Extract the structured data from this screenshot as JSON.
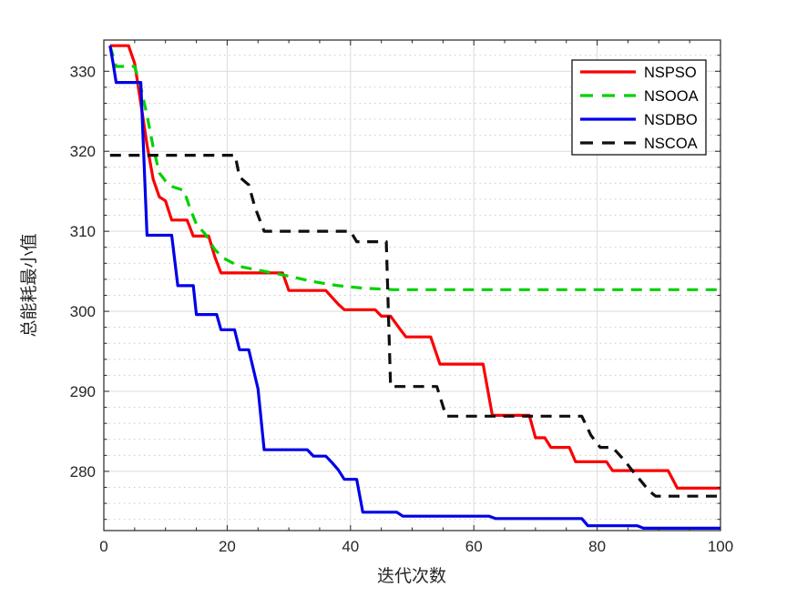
{
  "figure": {
    "background": "#ffffff"
  },
  "chart_data": {
    "type": "line",
    "title": "",
    "xlabel": "迭代次数",
    "ylabel": "总能耗最小值",
    "xlim": [
      0,
      100
    ],
    "ylim": [
      272.6,
      333.9
    ],
    "xticks": [
      0,
      20,
      40,
      60,
      80,
      100
    ],
    "yticks": [
      280,
      290,
      300,
      310,
      320,
      330
    ],
    "x_minor_step": 5,
    "y_minor_step": 2,
    "grid": {
      "major": true,
      "minor_horizontal_dotted": true
    },
    "axis_color": "#262626",
    "grid_major_color": "#dcdcdc",
    "grid_minor_color": "#c9c9c9",
    "legend": {
      "position": "northeast",
      "border_color": "#000000",
      "background": "#ffffff"
    },
    "series": [
      {
        "name": "NSPSO",
        "color": "#fa0000",
        "style": "solid",
        "points": [
          [
            1,
            333.2
          ],
          [
            4,
            333.2
          ],
          [
            5,
            331.0
          ],
          [
            6,
            326.0
          ],
          [
            7,
            320.8
          ],
          [
            8,
            316.5
          ],
          [
            9,
            314.3
          ],
          [
            10,
            313.8
          ],
          [
            11,
            311.4
          ],
          [
            13.5,
            311.4
          ],
          [
            14.5,
            309.4
          ],
          [
            17,
            309.4
          ],
          [
            18,
            306.8
          ],
          [
            19,
            304.8
          ],
          [
            29,
            304.8
          ],
          [
            30,
            302.6
          ],
          [
            36,
            302.6
          ],
          [
            38,
            300.9
          ],
          [
            39,
            300.2
          ],
          [
            44,
            300.2
          ],
          [
            45,
            299.4
          ],
          [
            46.5,
            299.4
          ],
          [
            48,
            297.8
          ],
          [
            49,
            296.8
          ],
          [
            53,
            296.8
          ],
          [
            54.5,
            293.4
          ],
          [
            61.5,
            293.4
          ],
          [
            63,
            287.0
          ],
          [
            69,
            287.0
          ],
          [
            70,
            284.2
          ],
          [
            71.5,
            284.2
          ],
          [
            72.5,
            283.0
          ],
          [
            75.5,
            283.0
          ],
          [
            76.5,
            281.2
          ],
          [
            81.5,
            281.2
          ],
          [
            82.5,
            280.1
          ],
          [
            91.5,
            280.1
          ],
          [
            93,
            277.9
          ],
          [
            100,
            277.9
          ]
        ]
      },
      {
        "name": "NSOOA",
        "color": "#00d100",
        "style": "dashed",
        "points": [
          [
            1,
            333.2
          ],
          [
            2,
            330.6
          ],
          [
            5,
            330.6
          ],
          [
            6,
            328.0
          ],
          [
            7,
            324.5
          ],
          [
            8,
            320.5
          ],
          [
            9,
            317.3
          ],
          [
            10,
            316.3
          ],
          [
            11,
            315.6
          ],
          [
            13,
            315.1
          ],
          [
            14,
            312.8
          ],
          [
            15,
            310.9
          ],
          [
            16.5,
            309.6
          ],
          [
            18,
            307.7
          ],
          [
            19.5,
            306.6
          ],
          [
            22,
            305.6
          ],
          [
            26,
            305.0
          ],
          [
            30,
            304.4
          ],
          [
            34,
            303.7
          ],
          [
            38,
            303.2
          ],
          [
            42,
            302.9
          ],
          [
            47,
            302.7
          ],
          [
            100,
            302.7
          ]
        ]
      },
      {
        "name": "NSDBO",
        "color": "#0000e8",
        "style": "solid",
        "points": [
          [
            1,
            333.2
          ],
          [
            1.5,
            331.0
          ],
          [
            2,
            328.6
          ],
          [
            6,
            328.6
          ],
          [
            7,
            309.5
          ],
          [
            11,
            309.5
          ],
          [
            12,
            303.2
          ],
          [
            14.5,
            303.2
          ],
          [
            15,
            299.6
          ],
          [
            18.3,
            299.6
          ],
          [
            19,
            297.7
          ],
          [
            21.2,
            297.7
          ],
          [
            22,
            295.2
          ],
          [
            23.5,
            295.2
          ],
          [
            25,
            290.3
          ],
          [
            26,
            282.7
          ],
          [
            33,
            282.7
          ],
          [
            34,
            281.9
          ],
          [
            36,
            281.9
          ],
          [
            37,
            281.1
          ],
          [
            38,
            280.2
          ],
          [
            39,
            279.0
          ],
          [
            41,
            279.0
          ],
          [
            42,
            274.9
          ],
          [
            47.5,
            274.9
          ],
          [
            48.5,
            274.4
          ],
          [
            62.5,
            274.4
          ],
          [
            63.5,
            274.1
          ],
          [
            77.5,
            274.1
          ],
          [
            78.5,
            273.2
          ],
          [
            86.5,
            273.2
          ],
          [
            87.5,
            272.9
          ],
          [
            100,
            272.9
          ]
        ]
      },
      {
        "name": "NSCOA",
        "color": "#0f0f0f",
        "style": "dashed",
        "points": [
          [
            1,
            319.5
          ],
          [
            21.3,
            319.5
          ],
          [
            22,
            316.8
          ],
          [
            23.5,
            315.8
          ],
          [
            24.5,
            313.0
          ],
          [
            26,
            310.0
          ],
          [
            40,
            310.0
          ],
          [
            41,
            308.7
          ],
          [
            45.8,
            308.7
          ],
          [
            46.5,
            290.6
          ],
          [
            54,
            290.6
          ],
          [
            55.5,
            286.9
          ],
          [
            77.5,
            286.9
          ],
          [
            79,
            284.5
          ],
          [
            80.5,
            283.0
          ],
          [
            82.5,
            283.0
          ],
          [
            84.5,
            281.3
          ],
          [
            85.5,
            280.3
          ],
          [
            88.5,
            277.5
          ],
          [
            89.5,
            276.9
          ],
          [
            100,
            276.9
          ]
        ]
      }
    ]
  }
}
